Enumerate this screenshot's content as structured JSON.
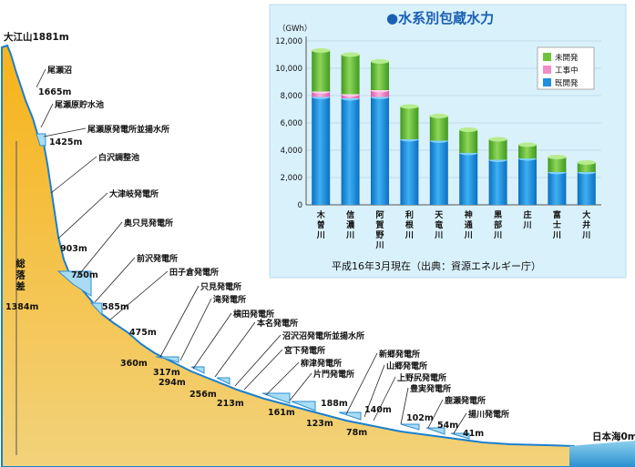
{
  "profile": {
    "summit": "大江山1881m",
    "sea": "日本海0m",
    "total_drop_label": "総落差",
    "total_drop_value": "1384m",
    "facilities": [
      {
        "name": "尾瀬沼"
      },
      {
        "name": "尾瀬原貯水池"
      },
      {
        "name": "尾瀬原発電所並揚水所"
      },
      {
        "name": "白沢調整池"
      },
      {
        "name": "大津岐発電所"
      },
      {
        "name": "奥只見発電所"
      },
      {
        "name": "前沢発電所"
      },
      {
        "name": "田子倉発電所"
      },
      {
        "name": "只見発電所"
      },
      {
        "name": "滝発電所"
      },
      {
        "name": "横田発電所"
      },
      {
        "name": "本名発電所"
      },
      {
        "name": "沼沢沼発電所並揚水所"
      },
      {
        "name": "宮下発電所"
      },
      {
        "name": "柳津発電所"
      },
      {
        "name": "片門発電所"
      },
      {
        "name": "新郷発電所"
      },
      {
        "name": "山郷発電所"
      },
      {
        "name": "上野尻発電所"
      },
      {
        "name": "豊実発電所"
      },
      {
        "name": "鹿瀬発電所"
      },
      {
        "name": "揚川発電所"
      }
    ],
    "elevations": [
      "1665m",
      "1425m",
      "903m",
      "750m",
      "585m",
      "475m",
      "360m",
      "317m",
      "294m",
      "256m",
      "213m",
      "161m",
      "123m",
      "188m",
      "140m",
      "78m",
      "102m",
      "54m",
      "41m"
    ]
  },
  "chart_data": {
    "type": "bar",
    "title": "●水系別包蔵水力",
    "unit": "（GWh）",
    "categories": [
      "木曽川",
      "信濃川",
      "阿賀野川",
      "利根川",
      "天竜川",
      "神通川",
      "黒部川",
      "庄川",
      "富士川",
      "大井川"
    ],
    "ylim": [
      0,
      12000
    ],
    "yticks": [
      "0",
      "2,000",
      "4,000",
      "6,000",
      "8,000",
      "10,000",
      "12,000"
    ],
    "series": [
      {
        "name": "既開発",
        "color": "#1f8fe0",
        "values": [
          7900,
          7800,
          7900,
          4800,
          4700,
          3800,
          3300,
          3400,
          2400,
          2400
        ]
      },
      {
        "name": "工事中",
        "color": "#f08cc8",
        "values": [
          400,
          300,
          500,
          0,
          0,
          0,
          0,
          0,
          0,
          0
        ]
      },
      {
        "name": "未開発",
        "color": "#6cc23a",
        "values": [
          3000,
          2900,
          2100,
          2400,
          1800,
          1700,
          1500,
          1000,
          1100,
          700
        ]
      }
    ],
    "legend_order": [
      "未開発",
      "工事中",
      "既開発"
    ],
    "legend_position": "top-right",
    "note": "平成16年3月現在（出典：資源エネルギー庁）"
  }
}
